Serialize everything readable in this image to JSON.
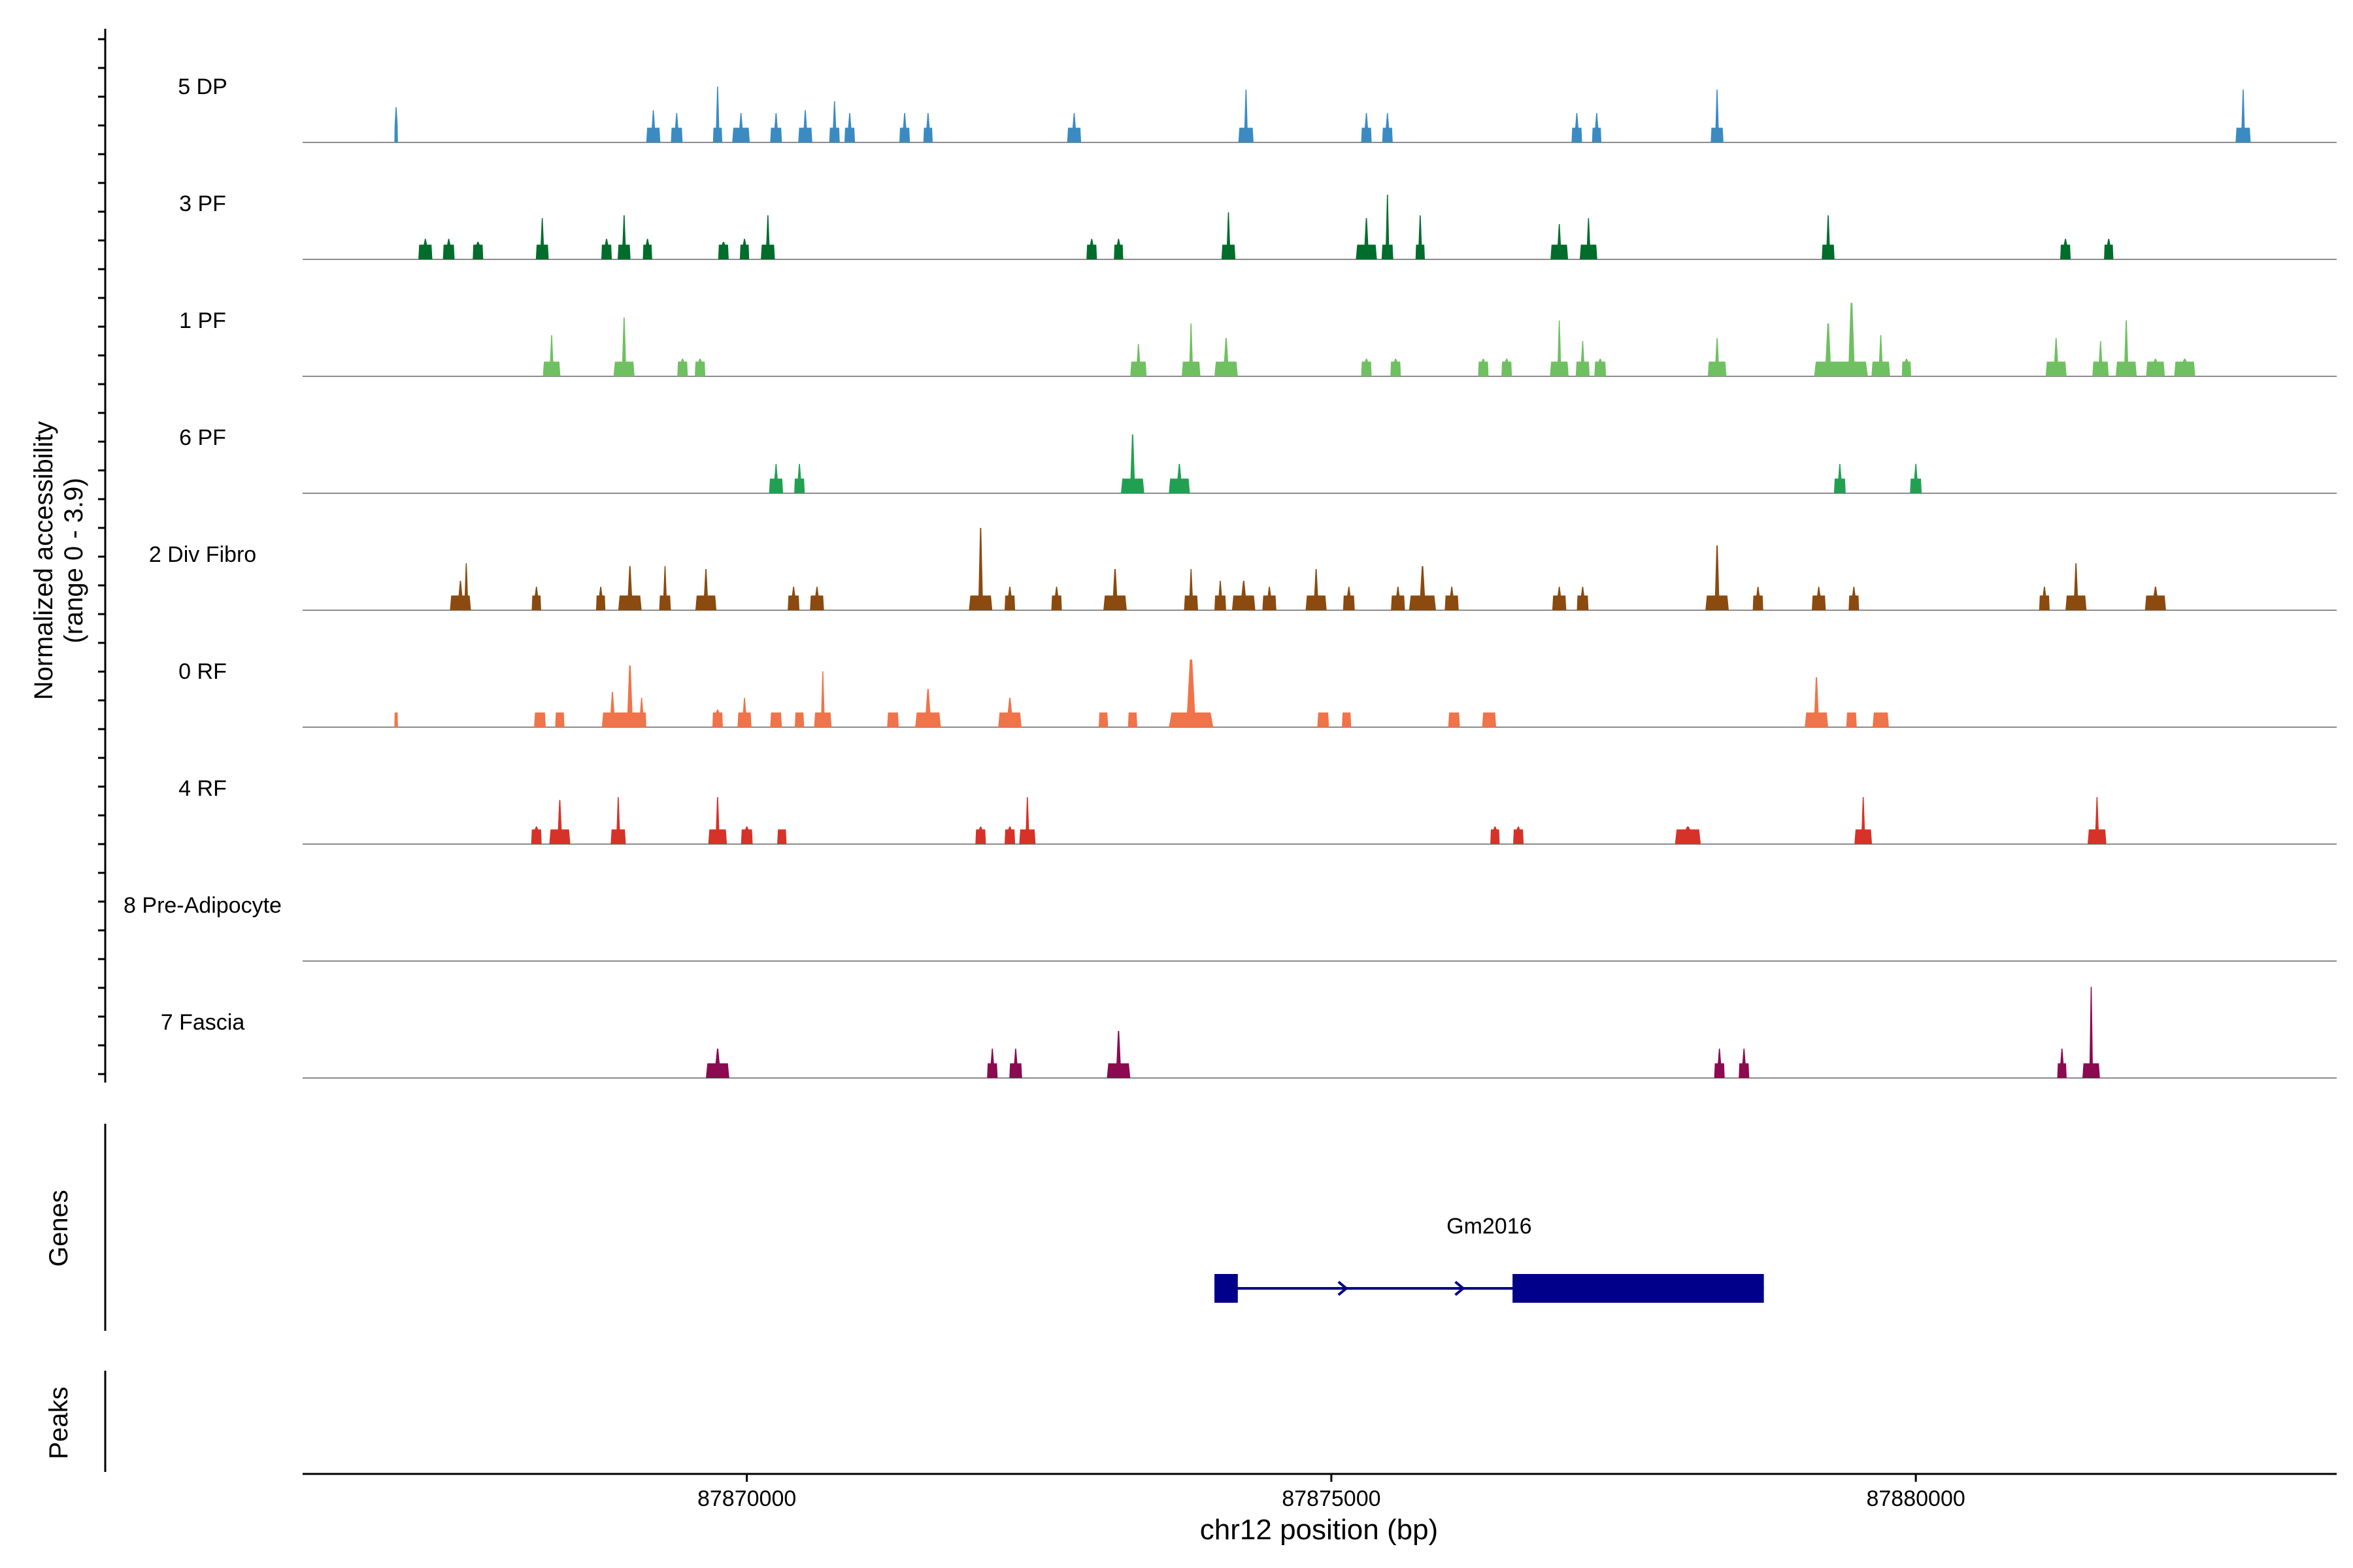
{
  "chart_data": {
    "type": "area",
    "title": "",
    "ylabel": "Normalized accessibility",
    "ylabel_range": "(range 0 - 3.9)",
    "ylim": [
      0,
      3.9
    ],
    "xlabel": "chr12 position (bp)",
    "xlim": [
      87866200,
      87883600
    ],
    "xticks": [
      87870000,
      87875000,
      87880000
    ],
    "xtick_labels": [
      "87870000",
      "87875000",
      "87880000"
    ],
    "tracks": [
      {
        "name": "5 DP",
        "color": "#3b8bc2",
        "peaks": [
          [
            87867000,
            30,
            1.2
          ],
          [
            87869200,
            120,
            1.1
          ],
          [
            87869400,
            100,
            1.0
          ],
          [
            87869750,
            80,
            1.9
          ],
          [
            87869950,
            150,
            1.0
          ],
          [
            87870250,
            100,
            1.0
          ],
          [
            87870500,
            120,
            1.1
          ],
          [
            87870750,
            90,
            1.4
          ],
          [
            87870880,
            90,
            1.0
          ],
          [
            87871350,
            90,
            1.0
          ],
          [
            87871550,
            80,
            1.0
          ],
          [
            87872800,
            120,
            1.0
          ],
          [
            87874270,
            130,
            1.8
          ],
          [
            87875300,
            90,
            1.0
          ],
          [
            87875480,
            90,
            1.0
          ],
          [
            87877100,
            90,
            1.0
          ],
          [
            87877270,
            80,
            1.0
          ],
          [
            87878300,
            110,
            1.8
          ],
          [
            87882800,
            130,
            1.8
          ]
        ]
      },
      {
        "name": "3 PF",
        "color": "#006d2c",
        "peaks": [
          [
            87867250,
            120,
            0.7
          ],
          [
            87867450,
            100,
            0.7
          ],
          [
            87867700,
            90,
            0.6
          ],
          [
            87868250,
            110,
            1.4
          ],
          [
            87868800,
            90,
            0.7
          ],
          [
            87868950,
            110,
            1.5
          ],
          [
            87869150,
            80,
            0.7
          ],
          [
            87869800,
            90,
            0.6
          ],
          [
            87869980,
            80,
            0.7
          ],
          [
            87870180,
            120,
            1.5
          ],
          [
            87872950,
            90,
            0.7
          ],
          [
            87873180,
            80,
            0.7
          ],
          [
            87874120,
            120,
            1.6
          ],
          [
            87875300,
            180,
            1.4
          ],
          [
            87875480,
            100,
            2.2
          ],
          [
            87875760,
            80,
            1.5
          ],
          [
            87876950,
            150,
            1.2
          ],
          [
            87877200,
            150,
            1.4
          ],
          [
            87879250,
            110,
            1.5
          ],
          [
            87881280,
            90,
            0.7
          ],
          [
            87881650,
            80,
            0.7
          ]
        ]
      },
      {
        "name": "1 PF",
        "color": "#6fc060",
        "peaks": [
          [
            87868330,
            150,
            1.4
          ],
          [
            87868950,
            180,
            2.0
          ],
          [
            87869450,
            90,
            0.6
          ],
          [
            87869600,
            90,
            0.6
          ],
          [
            87873350,
            140,
            1.1
          ],
          [
            87873800,
            160,
            1.8
          ],
          [
            87874100,
            200,
            1.3
          ],
          [
            87875300,
            90,
            0.6
          ],
          [
            87875550,
            90,
            0.6
          ],
          [
            87876300,
            90,
            0.6
          ],
          [
            87876500,
            90,
            0.6
          ],
          [
            87876950,
            160,
            1.9
          ],
          [
            87877150,
            120,
            1.2
          ],
          [
            87877300,
            100,
            0.6
          ],
          [
            87878300,
            160,
            1.3
          ],
          [
            87879250,
            240,
            1.8
          ],
          [
            87879450,
            280,
            2.5
          ],
          [
            87879700,
            160,
            1.4
          ],
          [
            87879920,
            80,
            0.6
          ],
          [
            87881200,
            180,
            1.3
          ],
          [
            87881580,
            140,
            1.2
          ],
          [
            87881800,
            180,
            1.9
          ],
          [
            87882050,
            160,
            0.6
          ],
          [
            87882300,
            180,
            0.6
          ]
        ]
      },
      {
        "name": "6 PF",
        "color": "#22a052",
        "peaks": [
          [
            87870250,
            120,
            1.0
          ],
          [
            87870450,
            90,
            1.0
          ],
          [
            87873300,
            200,
            2.0
          ],
          [
            87873700,
            180,
            1.0
          ],
          [
            87879350,
            100,
            1.0
          ],
          [
            87880000,
            100,
            1.0
          ]
        ]
      },
      {
        "name": "2 Div Fibro",
        "color": "#8a4a10",
        "peaks": [
          [
            87867550,
            180,
            1.0
          ],
          [
            87867600,
            60,
            1.6
          ],
          [
            87868200,
            80,
            0.8
          ],
          [
            87868750,
            80,
            0.8
          ],
          [
            87869000,
            200,
            1.5
          ],
          [
            87869300,
            100,
            1.5
          ],
          [
            87869650,
            180,
            1.4
          ],
          [
            87870400,
            100,
            0.8
          ],
          [
            87870600,
            120,
            0.8
          ],
          [
            87872000,
            200,
            2.8
          ],
          [
            87872250,
            90,
            0.8
          ],
          [
            87872650,
            90,
            0.8
          ],
          [
            87873150,
            200,
            1.4
          ],
          [
            87873800,
            120,
            1.4
          ],
          [
            87874050,
            100,
            1.0
          ],
          [
            87874250,
            200,
            1.0
          ],
          [
            87874470,
            120,
            0.8
          ],
          [
            87874870,
            180,
            1.4
          ],
          [
            87875150,
            100,
            0.8
          ],
          [
            87875570,
            120,
            0.8
          ],
          [
            87875780,
            230,
            1.5
          ],
          [
            87876030,
            120,
            0.8
          ],
          [
            87876950,
            120,
            0.8
          ],
          [
            87877150,
            100,
            0.8
          ],
          [
            87878300,
            200,
            2.2
          ],
          [
            87878650,
            90,
            0.8
          ],
          [
            87879170,
            120,
            0.8
          ],
          [
            87879470,
            90,
            0.8
          ],
          [
            87881100,
            90,
            0.8
          ],
          [
            87881370,
            180,
            1.6
          ],
          [
            87882050,
            180,
            0.8
          ]
        ]
      },
      {
        "name": "0 RF",
        "color": "#f0734a",
        "peaks": [
          [
            87867000,
            30,
            0.5
          ],
          [
            87868230,
            100,
            0.5
          ],
          [
            87868400,
            80,
            0.5
          ],
          [
            87868850,
            180,
            1.2
          ],
          [
            87869000,
            240,
            2.1
          ],
          [
            87869100,
            80,
            1.0
          ],
          [
            87869750,
            90,
            0.6
          ],
          [
            87869980,
            120,
            1.0
          ],
          [
            87870250,
            100,
            0.5
          ],
          [
            87870450,
            80,
            0.5
          ],
          [
            87870650,
            150,
            1.9
          ],
          [
            87871250,
            100,
            0.5
          ],
          [
            87871550,
            220,
            1.3
          ],
          [
            87872250,
            200,
            1.0
          ],
          [
            87873050,
            80,
            0.5
          ],
          [
            87873300,
            80,
            0.5
          ],
          [
            87873800,
            380,
            2.3
          ],
          [
            87874930,
            100,
            0.5
          ],
          [
            87875130,
            80,
            0.5
          ],
          [
            87876050,
            100,
            0.5
          ],
          [
            87876350,
            120,
            0.5
          ],
          [
            87879150,
            200,
            1.7
          ],
          [
            87879450,
            90,
            0.5
          ],
          [
            87879700,
            140,
            0.5
          ]
        ]
      },
      {
        "name": "4 RF",
        "color": "#d63228",
        "peaks": [
          [
            87868200,
            90,
            0.6
          ],
          [
            87868400,
            180,
            1.5
          ],
          [
            87868900,
            130,
            1.6
          ],
          [
            87869750,
            160,
            1.6
          ],
          [
            87870000,
            100,
            0.6
          ],
          [
            87870300,
            80,
            0.5
          ],
          [
            87872000,
            90,
            0.6
          ],
          [
            87872250,
            90,
            0.6
          ],
          [
            87872400,
            140,
            1.6
          ],
          [
            87876400,
            80,
            0.6
          ],
          [
            87876600,
            90,
            0.6
          ],
          [
            87878050,
            220,
            0.6
          ],
          [
            87879550,
            150,
            1.6
          ],
          [
            87881550,
            160,
            1.6
          ]
        ]
      },
      {
        "name": "8 Pre-Adipocyte",
        "color": "#7d3c98",
        "peaks": []
      },
      {
        "name": "7 Fascia",
        "color": "#8b0a50",
        "peaks": [
          [
            87869750,
            200,
            1.0
          ],
          [
            87872100,
            90,
            1.0
          ],
          [
            87872300,
            110,
            1.0
          ],
          [
            87873180,
            200,
            1.6
          ],
          [
            87878320,
            90,
            1.0
          ],
          [
            87878530,
            90,
            1.0
          ],
          [
            87881250,
            80,
            1.0
          ],
          [
            87881500,
            150,
            3.1
          ]
        ]
      }
    ],
    "genes": [
      {
        "name": "Gm2016",
        "strand": "+",
        "start": 87874000,
        "end": 87878700,
        "exons": [
          [
            87874000,
            87874200
          ],
          [
            87876550,
            87878700
          ]
        ]
      }
    ],
    "gene_panel_label": "Genes",
    "peaks_panel_label": "Peaks"
  }
}
